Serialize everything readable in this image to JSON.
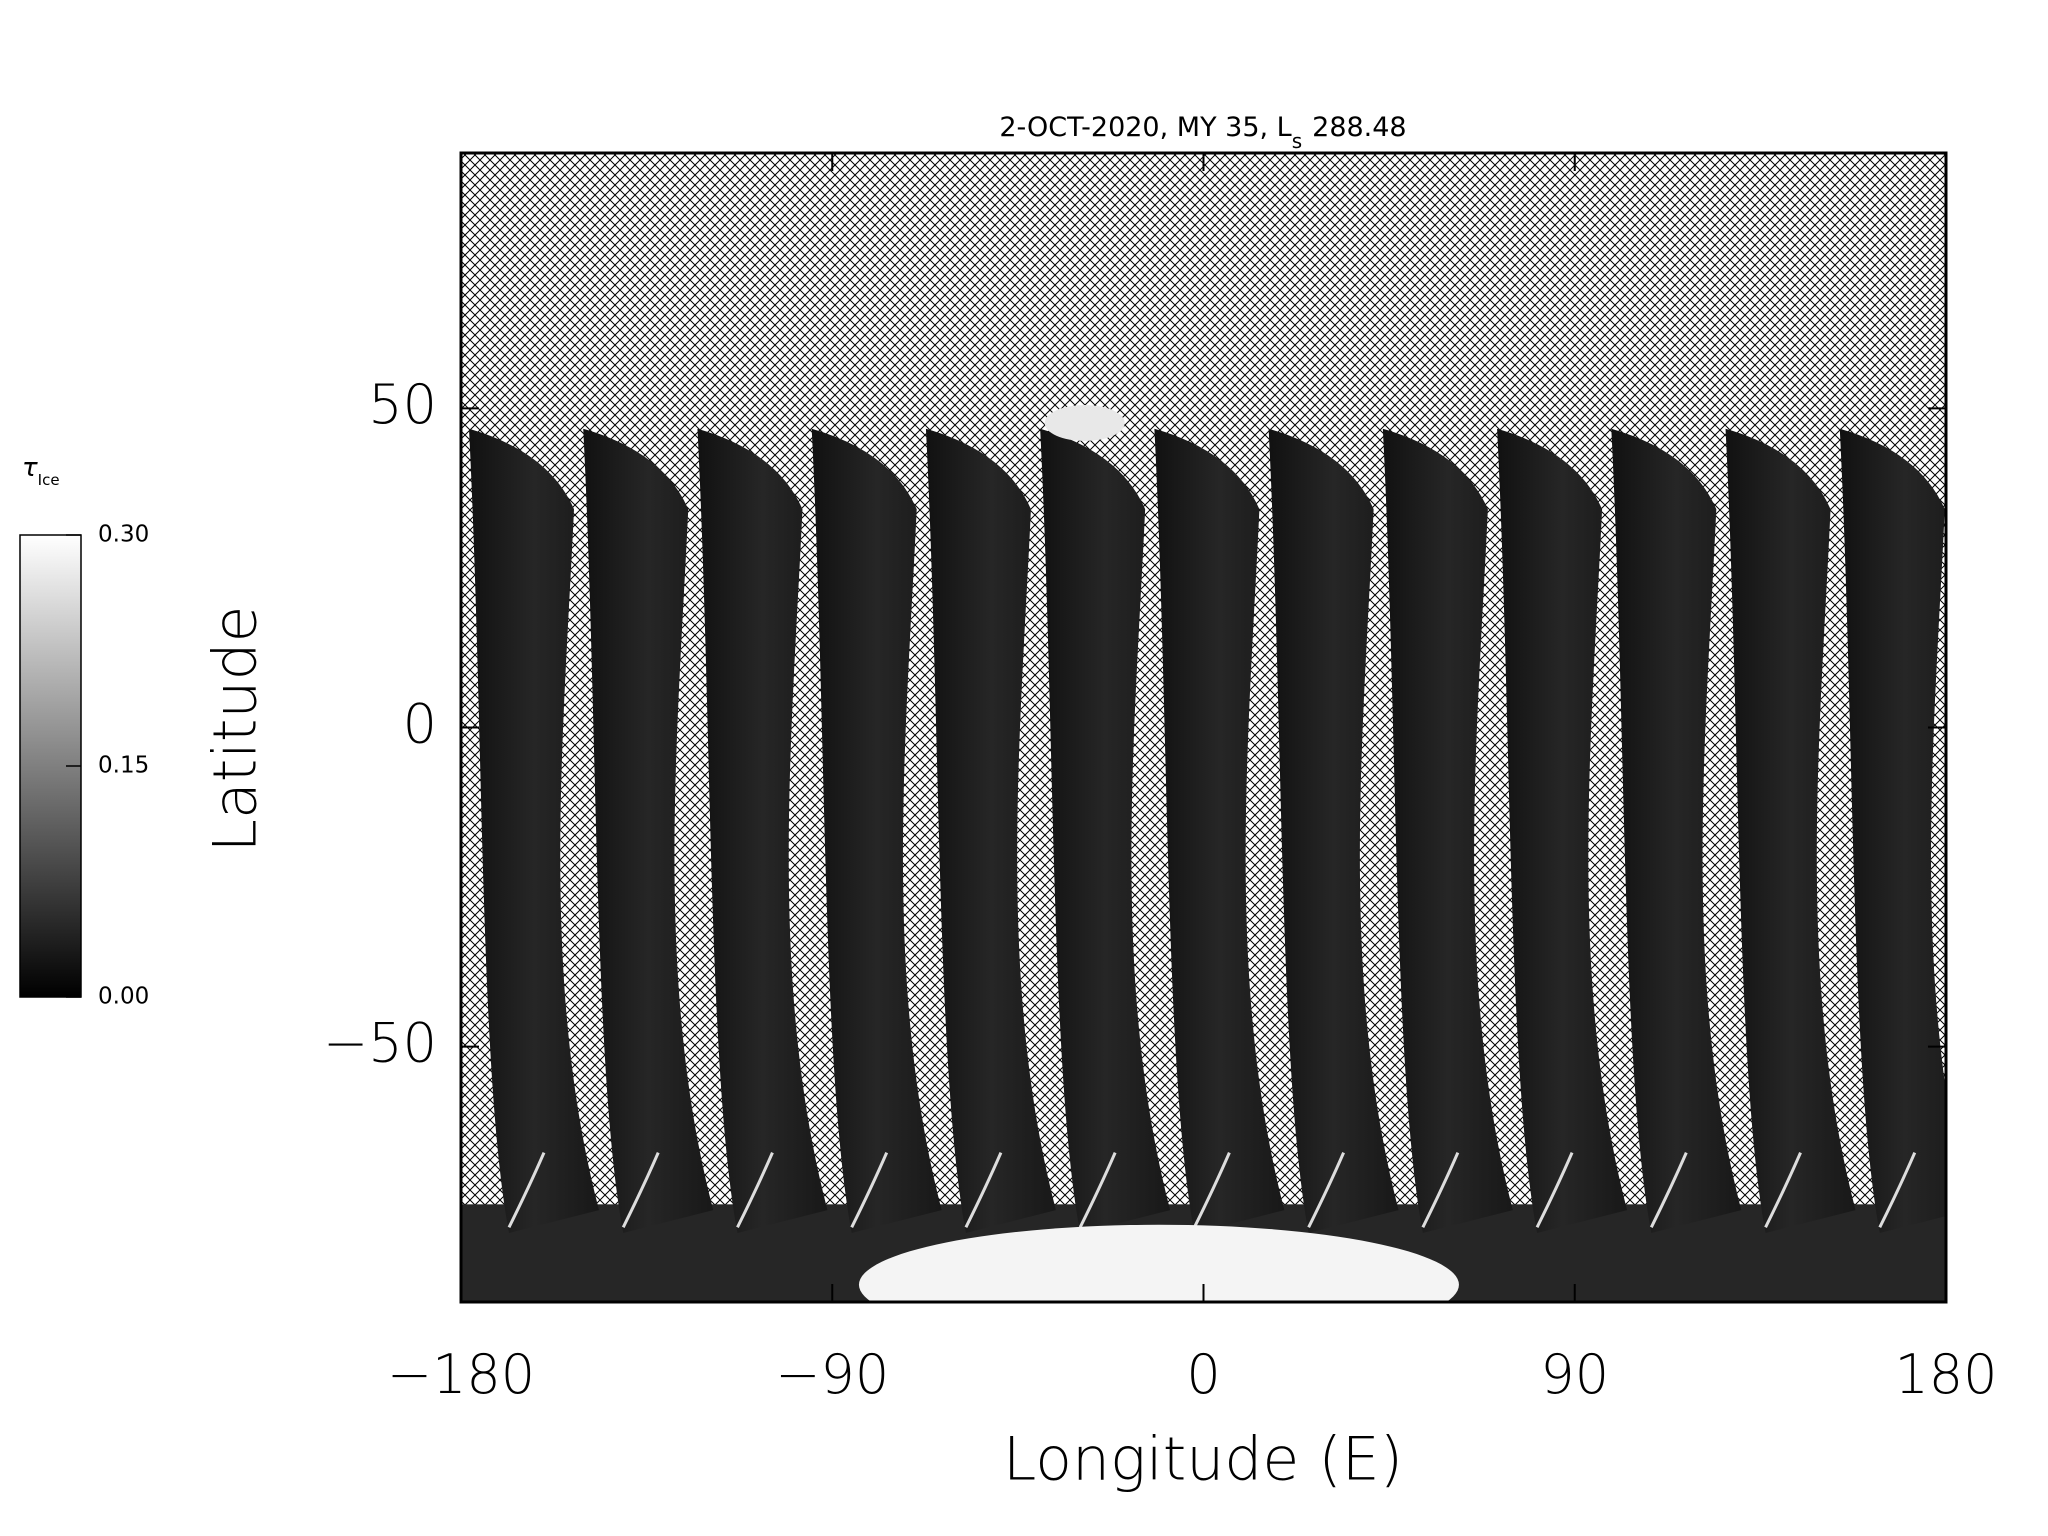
{
  "chart_data": {
    "type": "map",
    "title": "2-OCT-2020, MY 35,  L",
    "title_subscript": "s",
    "title_value": "288.48",
    "x_label": "Longitude (E)",
    "y_label": "Latitude",
    "xlim": [
      -180,
      180
    ],
    "ylim": [
      -90,
      90
    ],
    "xticks": [
      {
        "value": -180,
        "label": "−180"
      },
      {
        "value": -90,
        "label": "−90"
      },
      0,
      90,
      180
    ],
    "yticks": [
      {
        "value": -50,
        "label": "−50"
      },
      0,
      50
    ],
    "colorbar": {
      "label": "τ",
      "label_subscript": "Ice",
      "lim": [
        0,
        0.3
      ],
      "ticks": [
        {
          "value": 0,
          "label": "0.00"
        },
        {
          "value": 0.15,
          "label": "0.15"
        },
        {
          "value": 0.3,
          "label": "0.30"
        }
      ]
    }
  }
}
